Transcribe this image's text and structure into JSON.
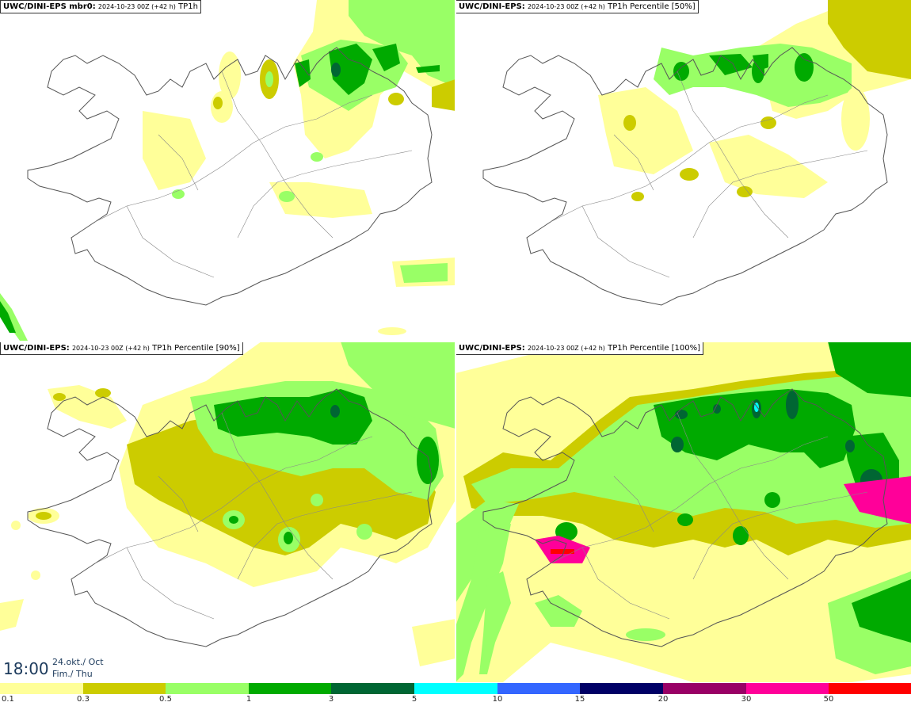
{
  "panels": [
    {
      "model": "UWC/DINI-EPS mbr0:",
      "run": "2024-10-23 00Z (+42 h)",
      "field": "TP1h"
    },
    {
      "model": "UWC/DINI-EPS:",
      "run": "2024-10-23 00Z (+42 h)",
      "field": "TP1h Percentile [50%]"
    },
    {
      "model": "UWC/DINI-EPS:",
      "run": "2024-10-23 00Z (+42 h)",
      "field": "TP1h Percentile [90%]"
    },
    {
      "model": "UWC/DINI-EPS:",
      "run": "2024-10-23 00Z (+42 h)",
      "field": "TP1h Percentile [100%]"
    }
  ],
  "valid_time": {
    "time": "18:00",
    "date_line1": "24.okt./ Oct",
    "date_line2": "Fim./ Thu"
  },
  "legend": {
    "colors": [
      "#ffff99",
      "#cccc00",
      "#99ff66",
      "#00aa00",
      "#006633",
      "#00ffff",
      "#3366ff",
      "#000066",
      "#990066",
      "#ff0099",
      "#ff0000"
    ],
    "labels": [
      "0.1",
      "0.3",
      "0.5",
      "1",
      "3",
      "5",
      "10",
      "15",
      "20",
      "30",
      "50"
    ]
  },
  "colors": {
    "light_yellow": "#ffff99",
    "olive": "#cccc00",
    "light_green": "#99ff66",
    "green": "#00aa00",
    "dark_green": "#006633",
    "coast": "#555555"
  }
}
